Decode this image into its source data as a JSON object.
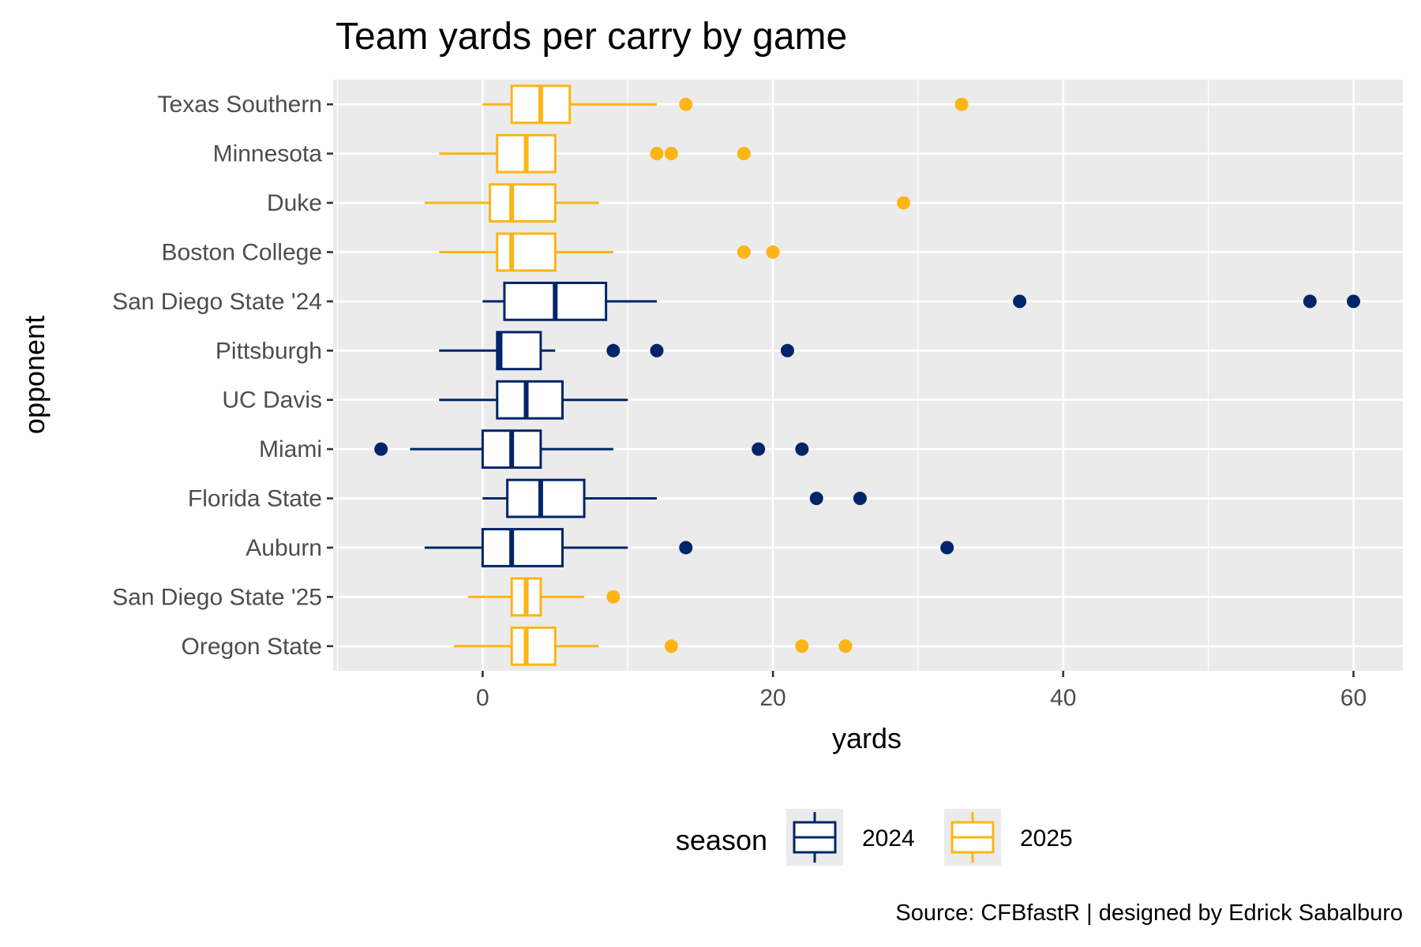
{
  "chart_data": {
    "type": "boxplot",
    "title": "Team yards per carry by game",
    "xlabel": "yards",
    "ylabel": "opponent",
    "xlim": [
      -10.3,
      63.4
    ],
    "x_ticks": [
      0,
      20,
      40,
      60
    ],
    "x_tick_labels": [
      "0",
      "20",
      "40",
      "60"
    ],
    "grid": true,
    "legend": {
      "title": "season",
      "position": "bottom",
      "entries": [
        {
          "label": "2024",
          "color": "#002469"
        },
        {
          "label": "2025",
          "color": "#FDB515"
        }
      ]
    },
    "caption": "Source: CFBfastR | designed by Edrick Sabalburo",
    "boxes": [
      {
        "opponent": "Texas Southern",
        "season": "2025",
        "whisker_low": 0,
        "q1": 2,
        "median": 4,
        "q3": 6,
        "whisker_high": 12,
        "outliers": [
          14,
          33
        ]
      },
      {
        "opponent": "Minnesota",
        "season": "2025",
        "whisker_low": -3,
        "q1": 1,
        "median": 3,
        "q3": 5,
        "whisker_high": 5,
        "outliers": [
          12,
          13,
          18
        ]
      },
      {
        "opponent": "Duke",
        "season": "2025",
        "whisker_low": -4,
        "q1": 0.5,
        "median": 2,
        "q3": 5,
        "whisker_high": 8,
        "outliers": [
          29
        ]
      },
      {
        "opponent": "Boston College",
        "season": "2025",
        "whisker_low": -3,
        "q1": 1,
        "median": 2,
        "q3": 5,
        "whisker_high": 9,
        "outliers": [
          18,
          20
        ]
      },
      {
        "opponent": "San Diego State '24",
        "season": "2024",
        "whisker_low": 0,
        "q1": 1.5,
        "median": 5,
        "q3": 8.5,
        "whisker_high": 12,
        "outliers": [
          37,
          57,
          60
        ]
      },
      {
        "opponent": "Pittsburgh",
        "season": "2024",
        "whisker_low": -3,
        "q1": 1,
        "median": 1.2,
        "q3": 4,
        "whisker_high": 5,
        "outliers": [
          9,
          12,
          21
        ]
      },
      {
        "opponent": "UC Davis",
        "season": "2024",
        "whisker_low": -3,
        "q1": 1,
        "median": 3,
        "q3": 5.5,
        "whisker_high": 10,
        "outliers": []
      },
      {
        "opponent": "Miami",
        "season": "2024",
        "whisker_low": -5,
        "q1": 0,
        "median": 2,
        "q3": 4,
        "whisker_high": 9,
        "outliers": [
          -7,
          19,
          22
        ]
      },
      {
        "opponent": "Florida State",
        "season": "2024",
        "whisker_low": 0,
        "q1": 1.7,
        "median": 4,
        "q3": 7,
        "whisker_high": 12,
        "outliers": [
          23,
          26
        ]
      },
      {
        "opponent": "Auburn",
        "season": "2024",
        "whisker_low": -4,
        "q1": 0,
        "median": 2,
        "q3": 5.5,
        "whisker_high": 10,
        "outliers": [
          14,
          32
        ]
      },
      {
        "opponent": "San Diego State '25",
        "season": "2025",
        "whisker_low": -1,
        "q1": 2,
        "median": 3,
        "q3": 4,
        "whisker_high": 7,
        "outliers": [
          9
        ]
      },
      {
        "opponent": "Oregon State",
        "season": "2025",
        "whisker_low": -2,
        "q1": 2,
        "median": 3,
        "q3": 5,
        "whisker_high": 8,
        "outliers": [
          13,
          22,
          25
        ]
      }
    ]
  }
}
